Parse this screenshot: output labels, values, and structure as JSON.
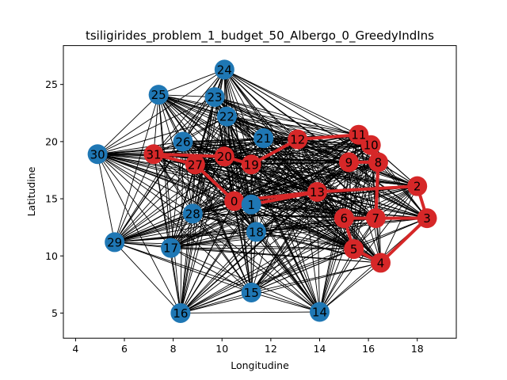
{
  "chart_data": {
    "type": "scatter",
    "title": "tsiligirides_problem_1_budget_50_Albergo_0_GreedyIndIns",
    "xlabel": "Longitudine",
    "ylabel": "Latitudine",
    "xlim": [
      3.5,
      19.6
    ],
    "ylim": [
      2.8,
      28.4
    ],
    "xticks": [
      4,
      6,
      8,
      10,
      12,
      14,
      16,
      18
    ],
    "yticks": [
      5,
      10,
      15,
      20,
      25
    ],
    "grid": false,
    "colors": {
      "visited": "#d62728",
      "unvisited": "#1f77b4",
      "edge": "#000000"
    },
    "nodes": [
      {
        "id": "0",
        "x": 10.5,
        "y": 14.8,
        "visited": true
      },
      {
        "id": "1",
        "x": 11.2,
        "y": 14.5,
        "visited": false
      },
      {
        "id": "2",
        "x": 18.0,
        "y": 16.1,
        "visited": true
      },
      {
        "id": "3",
        "x": 18.4,
        "y": 13.3,
        "visited": true
      },
      {
        "id": "4",
        "x": 16.5,
        "y": 9.4,
        "visited": true
      },
      {
        "id": "5",
        "x": 15.4,
        "y": 10.6,
        "visited": true
      },
      {
        "id": "6",
        "x": 15.0,
        "y": 13.3,
        "visited": true
      },
      {
        "id": "7",
        "x": 16.3,
        "y": 13.3,
        "visited": true
      },
      {
        "id": "8",
        "x": 16.4,
        "y": 18.2,
        "visited": true
      },
      {
        "id": "9",
        "x": 15.2,
        "y": 18.2,
        "visited": true
      },
      {
        "id": "10",
        "x": 16.1,
        "y": 19.7,
        "visited": true
      },
      {
        "id": "11",
        "x": 15.6,
        "y": 20.6,
        "visited": true
      },
      {
        "id": "12",
        "x": 13.1,
        "y": 20.2,
        "visited": true
      },
      {
        "id": "13",
        "x": 13.9,
        "y": 15.6,
        "visited": true
      },
      {
        "id": "14",
        "x": 14.0,
        "y": 5.1,
        "visited": false
      },
      {
        "id": "15",
        "x": 11.2,
        "y": 6.8,
        "visited": false
      },
      {
        "id": "16",
        "x": 8.3,
        "y": 5.0,
        "visited": false
      },
      {
        "id": "17",
        "x": 7.9,
        "y": 10.7,
        "visited": false
      },
      {
        "id": "18",
        "x": 11.4,
        "y": 12.1,
        "visited": false
      },
      {
        "id": "19",
        "x": 11.2,
        "y": 18.0,
        "visited": true
      },
      {
        "id": "20",
        "x": 10.1,
        "y": 18.7,
        "visited": true
      },
      {
        "id": "21",
        "x": 11.7,
        "y": 20.3,
        "visited": false
      },
      {
        "id": "22",
        "x": 10.2,
        "y": 22.2,
        "visited": false
      },
      {
        "id": "23",
        "x": 9.7,
        "y": 23.9,
        "visited": false
      },
      {
        "id": "24",
        "x": 10.1,
        "y": 26.3,
        "visited": false
      },
      {
        "id": "25",
        "x": 7.4,
        "y": 24.1,
        "visited": false
      },
      {
        "id": "26",
        "x": 8.4,
        "y": 20.0,
        "visited": false
      },
      {
        "id": "27",
        "x": 8.9,
        "y": 18.0,
        "visited": true
      },
      {
        "id": "28",
        "x": 8.8,
        "y": 13.7,
        "visited": false
      },
      {
        "id": "29",
        "x": 5.6,
        "y": 11.2,
        "visited": false
      },
      {
        "id": "30",
        "x": 4.9,
        "y": 18.9,
        "visited": false
      },
      {
        "id": "31",
        "x": 7.2,
        "y": 18.9,
        "visited": true
      }
    ],
    "route": [
      "31",
      "20",
      "19",
      "12",
      "11",
      "10",
      "8",
      "7",
      "3",
      "2",
      "13",
      "0",
      "27",
      "31"
    ],
    "route_branches": [
      [
        "9",
        "8"
      ],
      [
        "6",
        "5"
      ],
      [
        "5",
        "4"
      ],
      [
        "4",
        "3"
      ],
      [
        "7",
        "6"
      ],
      [
        "8",
        "7"
      ],
      [
        "13",
        "1"
      ]
    ]
  }
}
